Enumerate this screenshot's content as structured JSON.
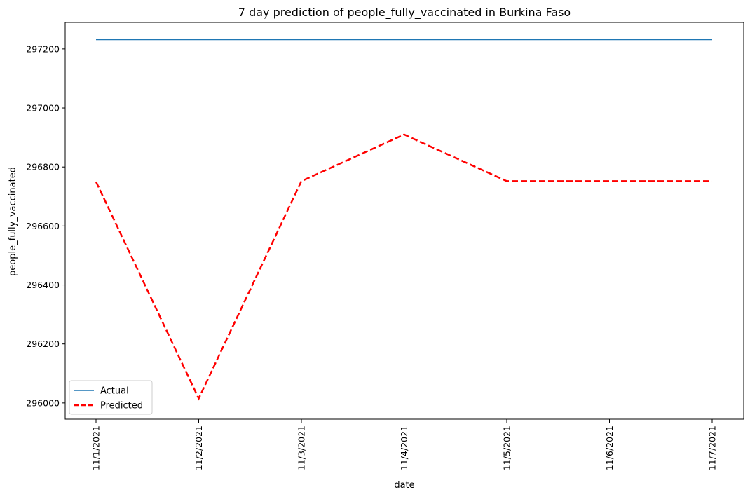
{
  "chart_data": {
    "type": "line",
    "title": "7 day prediction of people_fully_vaccinated in Burkina Faso",
    "xlabel": "date",
    "ylabel": "people_fully_vaccinated",
    "categories": [
      "11/1/2021",
      "11/2/2021",
      "11/3/2021",
      "11/4/2021",
      "11/5/2021",
      "11/6/2021",
      "11/7/2021"
    ],
    "y_ticks": [
      "296000",
      "296200",
      "296400",
      "296600",
      "296800",
      "297000",
      "297200"
    ],
    "ylim": [
      295945,
      297290
    ],
    "series": [
      {
        "name": "Actual",
        "color": "#1f77b4",
        "style": "solid",
        "values": [
          297232,
          297232,
          297232,
          297232,
          297232,
          297232,
          297232
        ]
      },
      {
        "name": "Predicted",
        "color": "#ff0000",
        "style": "dashed",
        "values": [
          296750,
          296015,
          296752,
          296910,
          296752,
          296752,
          296752
        ]
      }
    ],
    "legend": "lower-left",
    "grid": false
  }
}
